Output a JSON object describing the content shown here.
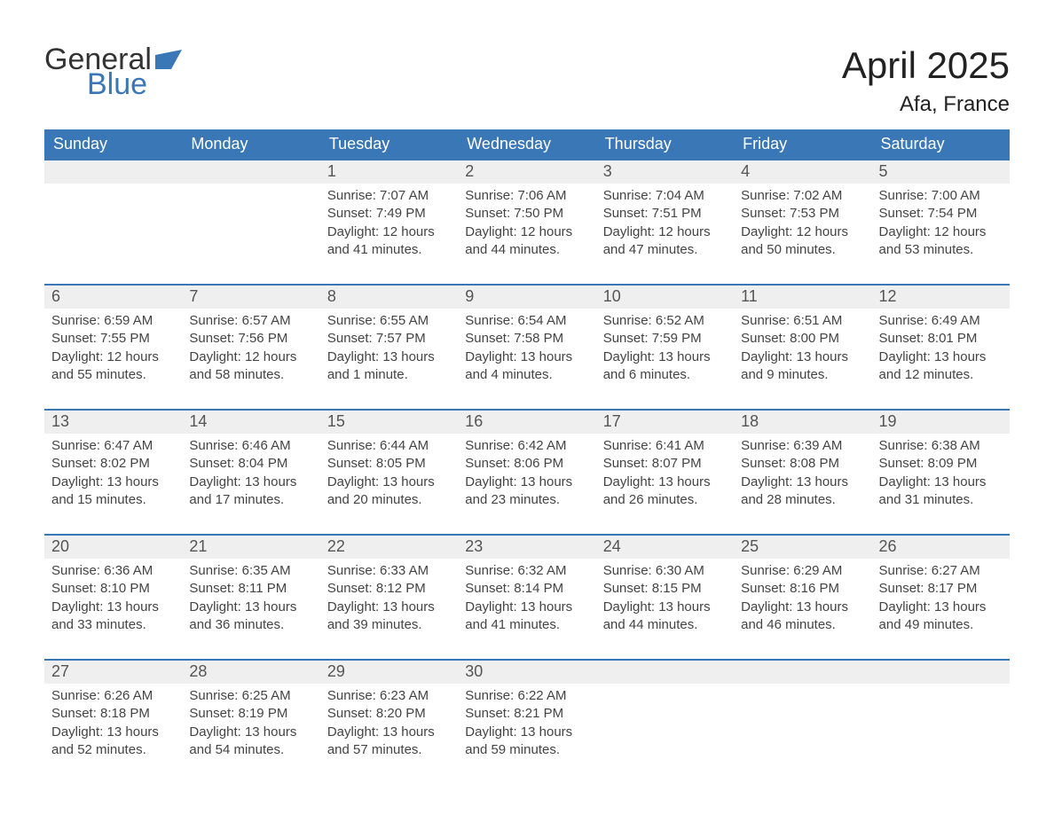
{
  "logo": {
    "text1": "General",
    "text2": "Blue",
    "flag_color": "#3a77b7"
  },
  "title": "April 2025",
  "location": "Afa, France",
  "colors": {
    "header_bg": "#3a77b7",
    "header_text": "#ffffff",
    "daynum_bg": "#efefef",
    "text": "#333333",
    "week_border": "#3a77b7",
    "background": "#ffffff"
  },
  "days_of_week": [
    "Sunday",
    "Monday",
    "Tuesday",
    "Wednesday",
    "Thursday",
    "Friday",
    "Saturday"
  ],
  "weeks": [
    [
      {
        "n": "",
        "lines": [
          "",
          "",
          "",
          ""
        ]
      },
      {
        "n": "",
        "lines": [
          "",
          "",
          "",
          ""
        ]
      },
      {
        "n": "1",
        "lines": [
          "Sunrise: 7:07 AM",
          "Sunset: 7:49 PM",
          "Daylight: 12 hours",
          "and 41 minutes."
        ]
      },
      {
        "n": "2",
        "lines": [
          "Sunrise: 7:06 AM",
          "Sunset: 7:50 PM",
          "Daylight: 12 hours",
          "and 44 minutes."
        ]
      },
      {
        "n": "3",
        "lines": [
          "Sunrise: 7:04 AM",
          "Sunset: 7:51 PM",
          "Daylight: 12 hours",
          "and 47 minutes."
        ]
      },
      {
        "n": "4",
        "lines": [
          "Sunrise: 7:02 AM",
          "Sunset: 7:53 PM",
          "Daylight: 12 hours",
          "and 50 minutes."
        ]
      },
      {
        "n": "5",
        "lines": [
          "Sunrise: 7:00 AM",
          "Sunset: 7:54 PM",
          "Daylight: 12 hours",
          "and 53 minutes."
        ]
      }
    ],
    [
      {
        "n": "6",
        "lines": [
          "Sunrise: 6:59 AM",
          "Sunset: 7:55 PM",
          "Daylight: 12 hours",
          "and 55 minutes."
        ]
      },
      {
        "n": "7",
        "lines": [
          "Sunrise: 6:57 AM",
          "Sunset: 7:56 PM",
          "Daylight: 12 hours",
          "and 58 minutes."
        ]
      },
      {
        "n": "8",
        "lines": [
          "Sunrise: 6:55 AM",
          "Sunset: 7:57 PM",
          "Daylight: 13 hours",
          "and 1 minute."
        ]
      },
      {
        "n": "9",
        "lines": [
          "Sunrise: 6:54 AM",
          "Sunset: 7:58 PM",
          "Daylight: 13 hours",
          "and 4 minutes."
        ]
      },
      {
        "n": "10",
        "lines": [
          "Sunrise: 6:52 AM",
          "Sunset: 7:59 PM",
          "Daylight: 13 hours",
          "and 6 minutes."
        ]
      },
      {
        "n": "11",
        "lines": [
          "Sunrise: 6:51 AM",
          "Sunset: 8:00 PM",
          "Daylight: 13 hours",
          "and 9 minutes."
        ]
      },
      {
        "n": "12",
        "lines": [
          "Sunrise: 6:49 AM",
          "Sunset: 8:01 PM",
          "Daylight: 13 hours",
          "and 12 minutes."
        ]
      }
    ],
    [
      {
        "n": "13",
        "lines": [
          "Sunrise: 6:47 AM",
          "Sunset: 8:02 PM",
          "Daylight: 13 hours",
          "and 15 minutes."
        ]
      },
      {
        "n": "14",
        "lines": [
          "Sunrise: 6:46 AM",
          "Sunset: 8:04 PM",
          "Daylight: 13 hours",
          "and 17 minutes."
        ]
      },
      {
        "n": "15",
        "lines": [
          "Sunrise: 6:44 AM",
          "Sunset: 8:05 PM",
          "Daylight: 13 hours",
          "and 20 minutes."
        ]
      },
      {
        "n": "16",
        "lines": [
          "Sunrise: 6:42 AM",
          "Sunset: 8:06 PM",
          "Daylight: 13 hours",
          "and 23 minutes."
        ]
      },
      {
        "n": "17",
        "lines": [
          "Sunrise: 6:41 AM",
          "Sunset: 8:07 PM",
          "Daylight: 13 hours",
          "and 26 minutes."
        ]
      },
      {
        "n": "18",
        "lines": [
          "Sunrise: 6:39 AM",
          "Sunset: 8:08 PM",
          "Daylight: 13 hours",
          "and 28 minutes."
        ]
      },
      {
        "n": "19",
        "lines": [
          "Sunrise: 6:38 AM",
          "Sunset: 8:09 PM",
          "Daylight: 13 hours",
          "and 31 minutes."
        ]
      }
    ],
    [
      {
        "n": "20",
        "lines": [
          "Sunrise: 6:36 AM",
          "Sunset: 8:10 PM",
          "Daylight: 13 hours",
          "and 33 minutes."
        ]
      },
      {
        "n": "21",
        "lines": [
          "Sunrise: 6:35 AM",
          "Sunset: 8:11 PM",
          "Daylight: 13 hours",
          "and 36 minutes."
        ]
      },
      {
        "n": "22",
        "lines": [
          "Sunrise: 6:33 AM",
          "Sunset: 8:12 PM",
          "Daylight: 13 hours",
          "and 39 minutes."
        ]
      },
      {
        "n": "23",
        "lines": [
          "Sunrise: 6:32 AM",
          "Sunset: 8:14 PM",
          "Daylight: 13 hours",
          "and 41 minutes."
        ]
      },
      {
        "n": "24",
        "lines": [
          "Sunrise: 6:30 AM",
          "Sunset: 8:15 PM",
          "Daylight: 13 hours",
          "and 44 minutes."
        ]
      },
      {
        "n": "25",
        "lines": [
          "Sunrise: 6:29 AM",
          "Sunset: 8:16 PM",
          "Daylight: 13 hours",
          "and 46 minutes."
        ]
      },
      {
        "n": "26",
        "lines": [
          "Sunrise: 6:27 AM",
          "Sunset: 8:17 PM",
          "Daylight: 13 hours",
          "and 49 minutes."
        ]
      }
    ],
    [
      {
        "n": "27",
        "lines": [
          "Sunrise: 6:26 AM",
          "Sunset: 8:18 PM",
          "Daylight: 13 hours",
          "and 52 minutes."
        ]
      },
      {
        "n": "28",
        "lines": [
          "Sunrise: 6:25 AM",
          "Sunset: 8:19 PM",
          "Daylight: 13 hours",
          "and 54 minutes."
        ]
      },
      {
        "n": "29",
        "lines": [
          "Sunrise: 6:23 AM",
          "Sunset: 8:20 PM",
          "Daylight: 13 hours",
          "and 57 minutes."
        ]
      },
      {
        "n": "30",
        "lines": [
          "Sunrise: 6:22 AM",
          "Sunset: 8:21 PM",
          "Daylight: 13 hours",
          "and 59 minutes."
        ]
      },
      {
        "n": "",
        "lines": [
          "",
          "",
          "",
          ""
        ]
      },
      {
        "n": "",
        "lines": [
          "",
          "",
          "",
          ""
        ]
      },
      {
        "n": "",
        "lines": [
          "",
          "",
          "",
          ""
        ]
      }
    ]
  ]
}
